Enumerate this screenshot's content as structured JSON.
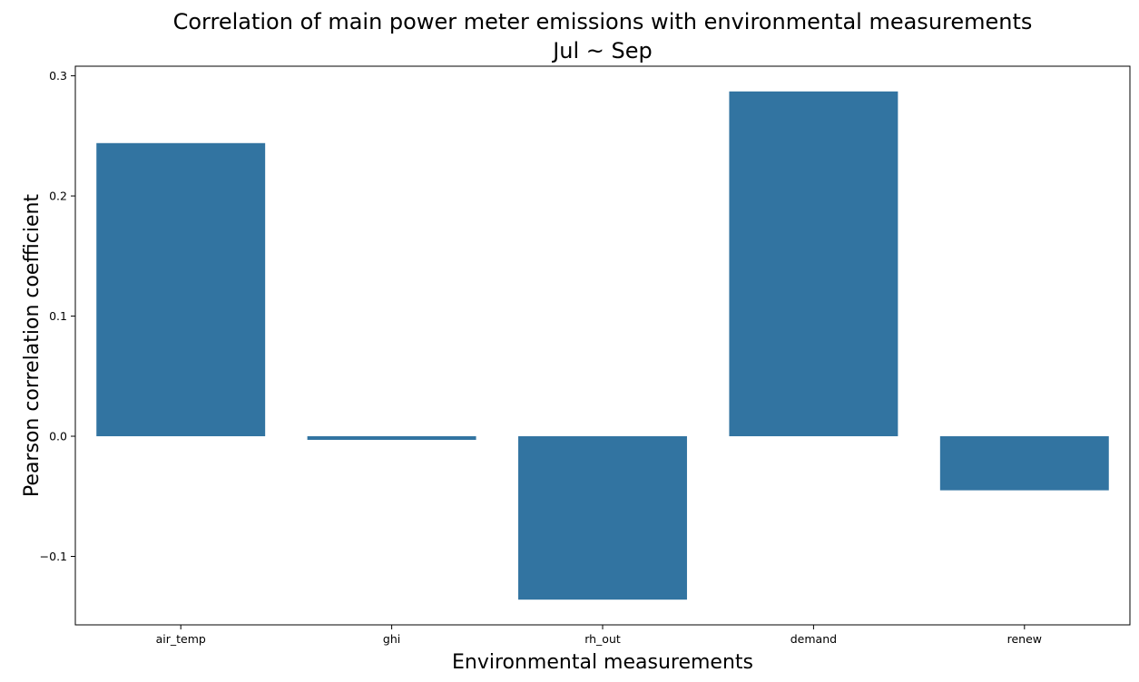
{
  "chart_data": {
    "type": "bar",
    "title": "Correlation of main power meter emissions with environmental measurements",
    "subtitle": "Jul ~ Sep",
    "xlabel": "Environmental measurements",
    "ylabel": "Pearson correlation coefficient",
    "categories": [
      "air_temp",
      "ghi",
      "rh_out",
      "demand",
      "renew"
    ],
    "values": [
      0.244,
      -0.003,
      -0.136,
      0.287,
      -0.045
    ],
    "ylim": [
      -0.157,
      0.308
    ],
    "yticks": [
      -0.1,
      0.0,
      0.1,
      0.2,
      0.3
    ],
    "ytick_labels": [
      "−0.1",
      "0.0",
      "0.1",
      "0.2",
      "0.3"
    ],
    "bar_color": "#3274a1",
    "grid": false,
    "legend": "none"
  }
}
